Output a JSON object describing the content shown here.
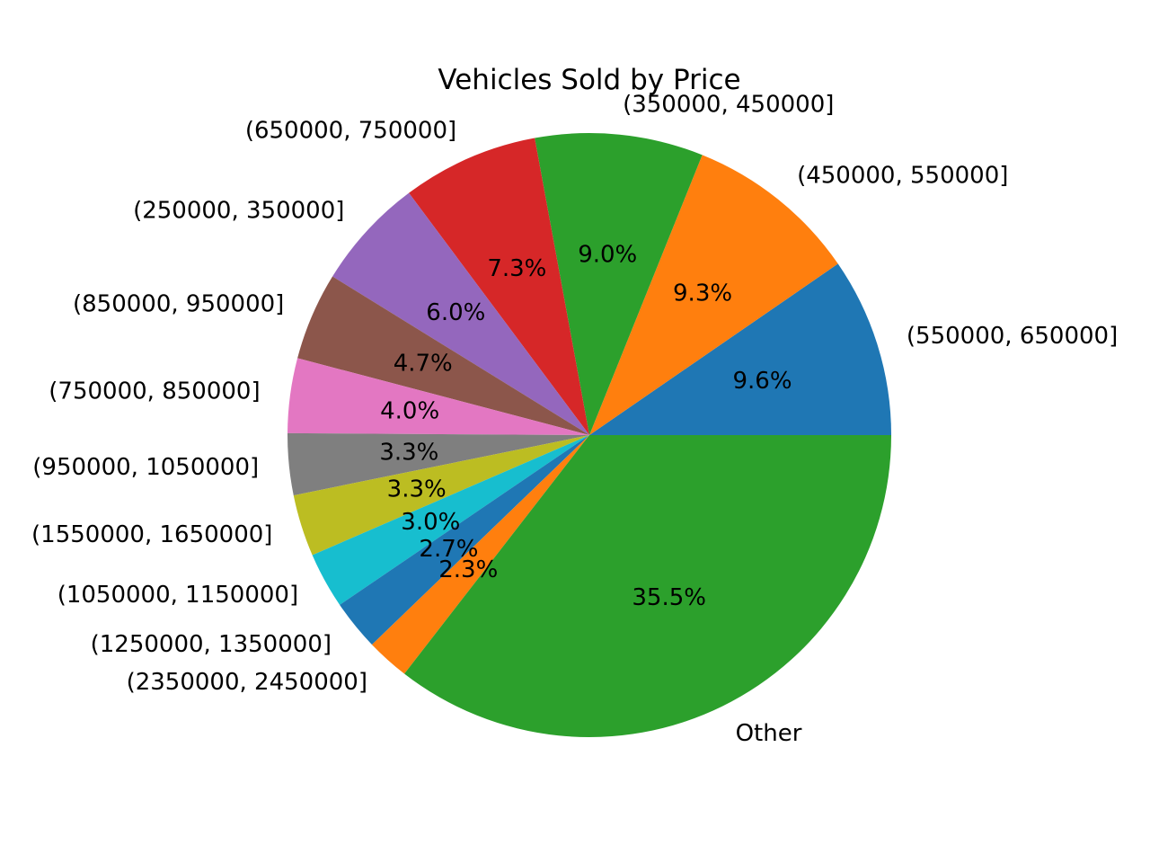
{
  "chart_data": {
    "type": "pie",
    "title": "Vehicles Sold by Price",
    "start_angle_deg": 0,
    "direction": "counterclockwise",
    "slices": [
      {
        "label": "(550000, 650000]",
        "value": 9.6,
        "pct_text": "9.6%",
        "color": "#1f77b4"
      },
      {
        "label": "(450000, 550000]",
        "value": 9.3,
        "pct_text": "9.3%",
        "color": "#ff7f0e"
      },
      {
        "label": "(350000, 450000]",
        "value": 9.0,
        "pct_text": "9.0%",
        "color": "#2ca02c"
      },
      {
        "label": "(650000, 750000]",
        "value": 7.3,
        "pct_text": "7.3%",
        "color": "#d62728"
      },
      {
        "label": "(250000, 350000]",
        "value": 6.0,
        "pct_text": "6.0%",
        "color": "#9467bd"
      },
      {
        "label": "(850000, 950000]",
        "value": 4.7,
        "pct_text": "4.7%",
        "color": "#8c564b"
      },
      {
        "label": "(750000, 850000]",
        "value": 4.0,
        "pct_text": "4.0%",
        "color": "#e377c2"
      },
      {
        "label": "(950000, 1050000]",
        "value": 3.3,
        "pct_text": "3.3%",
        "color": "#7f7f7f"
      },
      {
        "label": "(1550000, 1650000]",
        "value": 3.3,
        "pct_text": "3.3%",
        "color": "#bcbd22"
      },
      {
        "label": "(1050000, 1150000]",
        "value": 3.0,
        "pct_text": "3.0%",
        "color": "#17becf"
      },
      {
        "label": "(1250000, 1350000]",
        "value": 2.7,
        "pct_text": "2.7%",
        "color": "#1f77b4"
      },
      {
        "label": "(2350000, 2450000]",
        "value": 2.3,
        "pct_text": "2.3%",
        "color": "#ff7f0e"
      },
      {
        "label": "Other",
        "value": 35.5,
        "pct_text": "35.5%",
        "color": "#2ca02c"
      }
    ]
  }
}
